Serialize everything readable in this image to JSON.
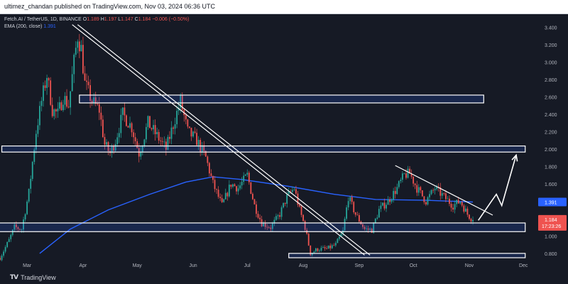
{
  "header": {
    "published_line": "ultimez_chandan published on TradingView.com, Nov 03, 2024 06:36 UTC"
  },
  "legend": {
    "symbol": "Fetch.AI / TetherUS, 1D, BINANCE",
    "open_label": "O",
    "open": "1.189",
    "high_label": "H",
    "high": "1.197",
    "low_label": "L",
    "low": "1.147",
    "close_label": "C",
    "close": "1.184",
    "change": "−0.006 (−0.50%)",
    "ema_label": "EMA (200, close)",
    "ema_value": "1.391"
  },
  "footer": {
    "brand": "TradingView",
    "logo": "TV"
  },
  "colors": {
    "background": "#161a25",
    "bull": "#26a69a",
    "bear": "#ef5350",
    "ema": "#2962ff",
    "annotation": "#ffffff"
  },
  "chart_data": {
    "type": "candlestick",
    "symbol": "Fetch.AI / TetherUS",
    "interval": "1D",
    "exchange": "BINANCE",
    "x_ticks": [
      "Mar",
      "Apr",
      "May",
      "Jun",
      "Jul",
      "Aug",
      "Sep",
      "Oct",
      "Nov",
      "Dec"
    ],
    "y_ticks": [
      "3.400",
      "3.200",
      "3.000",
      "2.800",
      "2.600",
      "2.400",
      "2.200",
      "2.000",
      "1.800",
      "1.600",
      "1.400",
      "1.200",
      "1.000",
      "0.800"
    ],
    "y_ticks_values": [
      3.4,
      3.2,
      3.0,
      2.8,
      2.6,
      2.4,
      2.2,
      2.0,
      1.8,
      1.6,
      1.4,
      1.2,
      1.0,
      0.8
    ],
    "ylim": [
      0.75,
      3.55
    ],
    "x_range": [
      "2024-02-15",
      "2024-12-08"
    ],
    "price_path": [
      [
        "2024-02-15",
        0.75
      ],
      [
        "2024-02-20",
        0.95
      ],
      [
        "2024-02-23",
        1.1
      ],
      [
        "2024-02-27",
        1.08
      ],
      [
        "2024-03-02",
        1.5
      ],
      [
        "2024-03-06",
        2.2
      ],
      [
        "2024-03-09",
        2.55
      ],
      [
        "2024-03-12",
        2.85
      ],
      [
        "2024-03-15",
        2.45
      ],
      [
        "2024-03-18",
        2.4
      ],
      [
        "2024-03-21",
        2.6
      ],
      [
        "2024-03-24",
        2.5
      ],
      [
        "2024-03-27",
        3.0
      ],
      [
        "2024-03-29",
        3.3
      ],
      [
        "2024-03-31",
        3.15
      ],
      [
        "2024-04-02",
        2.75
      ],
      [
        "2024-04-06",
        2.55
      ],
      [
        "2024-04-10",
        2.45
      ],
      [
        "2024-04-13",
        2.05
      ],
      [
        "2024-04-16",
        1.95
      ],
      [
        "2024-04-19",
        2.1
      ],
      [
        "2024-04-23",
        2.4
      ],
      [
        "2024-04-28",
        2.25
      ],
      [
        "2024-05-02",
        1.95
      ],
      [
        "2024-05-07",
        2.3
      ],
      [
        "2024-05-12",
        2.15
      ],
      [
        "2024-05-17",
        2.0
      ],
      [
        "2024-05-22",
        2.35
      ],
      [
        "2024-05-25",
        2.55
      ],
      [
        "2024-05-29",
        2.2
      ],
      [
        "2024-06-03",
        2.1
      ],
      [
        "2024-06-08",
        1.9
      ],
      [
        "2024-06-12",
        1.6
      ],
      [
        "2024-06-17",
        1.35
      ],
      [
        "2024-06-22",
        1.6
      ],
      [
        "2024-06-26",
        1.55
      ],
      [
        "2024-07-01",
        1.7
      ],
      [
        "2024-07-05",
        1.35
      ],
      [
        "2024-07-09",
        1.15
      ],
      [
        "2024-07-14",
        1.1
      ],
      [
        "2024-07-19",
        1.25
      ],
      [
        "2024-07-23",
        1.45
      ],
      [
        "2024-07-27",
        1.55
      ],
      [
        "2024-07-30",
        1.3
      ],
      [
        "2024-08-02",
        1.1
      ],
      [
        "2024-08-05",
        0.8
      ],
      [
        "2024-08-09",
        0.85
      ],
      [
        "2024-08-14",
        0.85
      ],
      [
        "2024-08-19",
        0.9
      ],
      [
        "2024-08-23",
        1.05
      ],
      [
        "2024-08-26",
        1.45
      ],
      [
        "2024-08-30",
        1.25
      ],
      [
        "2024-09-04",
        1.08
      ],
      [
        "2024-09-08",
        1.07
      ],
      [
        "2024-09-12",
        1.3
      ],
      [
        "2024-09-17",
        1.4
      ],
      [
        "2024-09-22",
        1.55
      ],
      [
        "2024-09-26",
        1.7
      ],
      [
        "2024-09-29",
        1.72
      ],
      [
        "2024-10-03",
        1.55
      ],
      [
        "2024-10-08",
        1.4
      ],
      [
        "2024-10-13",
        1.55
      ],
      [
        "2024-10-18",
        1.45
      ],
      [
        "2024-10-23",
        1.35
      ],
      [
        "2024-10-27",
        1.4
      ],
      [
        "2024-10-31",
        1.25
      ],
      [
        "2024-11-03",
        1.184
      ]
    ],
    "ema200_path": [
      [
        "2024-03-08",
        0.8
      ],
      [
        "2024-03-25",
        1.08
      ],
      [
        "2024-04-15",
        1.3
      ],
      [
        "2024-05-08",
        1.48
      ],
      [
        "2024-05-28",
        1.62
      ],
      [
        "2024-06-12",
        1.68
      ],
      [
        "2024-06-28",
        1.65
      ],
      [
        "2024-07-24",
        1.57
      ],
      [
        "2024-08-18",
        1.48
      ],
      [
        "2024-09-10",
        1.42
      ],
      [
        "2024-10-08",
        1.41
      ],
      [
        "2024-11-03",
        1.391
      ]
    ],
    "zones": [
      {
        "x": [
          "2024-03-30",
          "2024-11-09"
        ],
        "y": [
          2.53,
          2.62
        ]
      },
      {
        "x": [
          "2024-02-16",
          "2024-12-02"
        ],
        "y": [
          1.965,
          2.035
        ]
      },
      {
        "x": [
          "2024-02-09",
          "2024-12-02"
        ],
        "y": [
          1.05,
          1.15
        ]
      },
      {
        "x": [
          "2024-07-24",
          "2024-12-02"
        ],
        "y": [
          0.75,
          0.8
        ]
      }
    ],
    "trendlines": [
      {
        "from": [
          "2024-03-26",
          3.43
        ],
        "to": [
          "2024-09-04",
          0.78
        ]
      },
      {
        "from": [
          "2024-03-29",
          3.43
        ],
        "to": [
          "2024-09-07",
          0.78
        ]
      },
      {
        "from": [
          "2024-09-21",
          1.81
        ],
        "to": [
          "2024-11-14",
          1.24
        ]
      }
    ],
    "projection_path": [
      [
        "2024-11-06",
        1.18
      ],
      [
        "2024-11-13",
        1.39
      ],
      [
        "2024-11-16",
        1.48
      ],
      [
        "2024-11-19",
        1.35
      ],
      [
        "2024-11-27",
        1.93
      ]
    ],
    "current_price": {
      "value": 1.184,
      "label": "1.184",
      "countdown": "17:23:26",
      "color": "#ef5350"
    },
    "ema_price": {
      "value": 1.391,
      "label": "1.391",
      "color": "#2962ff"
    },
    "grid": false
  }
}
